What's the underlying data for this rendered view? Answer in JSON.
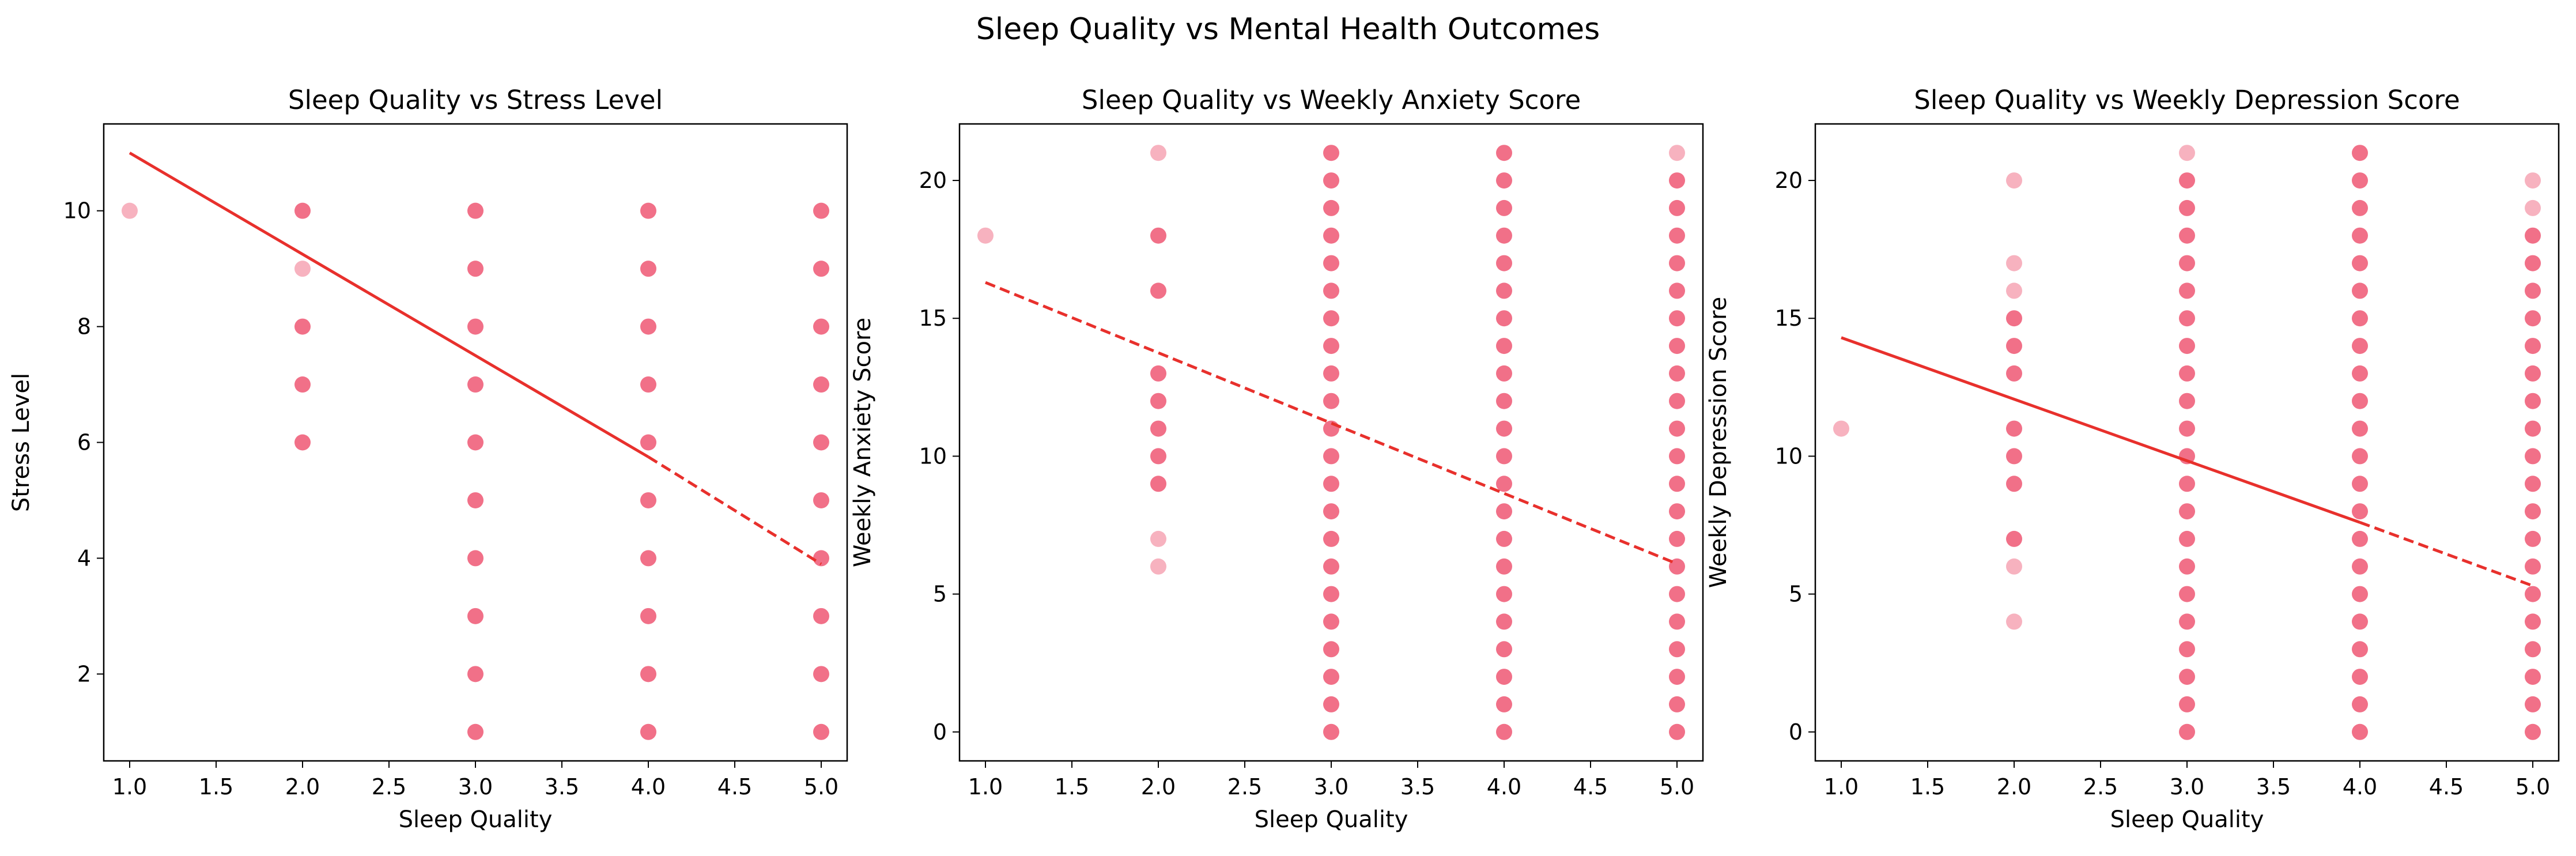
{
  "figure": {
    "suptitle": "Sleep Quality vs Mental Health Outcomes",
    "point_color": "#f0657f",
    "line_color": "#e8302c"
  },
  "chart_data": [
    {
      "type": "scatter",
      "title": "Sleep Quality vs Stress Level",
      "xlabel": "Sleep Quality",
      "ylabel": "Stress Level",
      "xlim": [
        0.85,
        5.15
      ],
      "ylim": [
        0.5,
        11.5
      ],
      "xticks": [
        "1.0",
        "1.5",
        "2.0",
        "2.5",
        "3.0",
        "3.5",
        "4.0",
        "4.5",
        "5.0"
      ],
      "yticks": [
        "2",
        "4",
        "6",
        "8",
        "10"
      ],
      "xtick_values": [
        1.0,
        1.5,
        2.0,
        2.5,
        3.0,
        3.5,
        4.0,
        4.5,
        5.0
      ],
      "ytick_values": [
        2,
        4,
        6,
        8,
        10
      ],
      "points": [
        {
          "x": 1,
          "y": [
            10
          ],
          "light": [
            10
          ]
        },
        {
          "x": 2,
          "y": [
            6,
            7,
            8,
            9,
            10
          ],
          "light": [
            9
          ]
        },
        {
          "x": 3,
          "y": [
            1,
            2,
            3,
            4,
            5,
            6,
            7,
            8,
            9,
            10
          ],
          "light": []
        },
        {
          "x": 4,
          "y": [
            1,
            2,
            3,
            4,
            5,
            6,
            7,
            8,
            9,
            10
          ],
          "light": []
        },
        {
          "x": 5,
          "y": [
            1,
            2,
            3,
            4,
            5,
            6,
            7,
            8,
            9,
            10
          ],
          "light": []
        }
      ],
      "trend": {
        "solid": [
          [
            1,
            11.0
          ],
          [
            4,
            5.75
          ]
        ],
        "dashed": [
          [
            4,
            5.75
          ],
          [
            5,
            3.9
          ]
        ]
      }
    },
    {
      "type": "scatter",
      "title": "Sleep Quality vs Weekly Anxiety Score",
      "xlabel": "Sleep Quality",
      "ylabel": "Weekly Anxiety Score",
      "xlim": [
        0.85,
        5.15
      ],
      "ylim": [
        -1.05,
        22.05
      ],
      "xticks": [
        "1.0",
        "1.5",
        "2.0",
        "2.5",
        "3.0",
        "3.5",
        "4.0",
        "4.5",
        "5.0"
      ],
      "yticks": [
        "0",
        "5",
        "10",
        "15",
        "20"
      ],
      "xtick_values": [
        1.0,
        1.5,
        2.0,
        2.5,
        3.0,
        3.5,
        4.0,
        4.5,
        5.0
      ],
      "ytick_values": [
        0,
        5,
        10,
        15,
        20
      ],
      "points": [
        {
          "x": 1,
          "y": [
            18
          ],
          "light": [
            18
          ]
        },
        {
          "x": 2,
          "y": [
            6,
            7,
            9,
            10,
            11,
            12,
            13,
            16,
            18,
            21
          ],
          "light": [
            6,
            7,
            21
          ]
        },
        {
          "x": 3,
          "y": [
            0,
            1,
            2,
            3,
            4,
            5,
            6,
            7,
            8,
            9,
            10,
            11,
            12,
            13,
            14,
            15,
            16,
            17,
            18,
            19,
            20,
            21
          ],
          "light": []
        },
        {
          "x": 4,
          "y": [
            0,
            1,
            2,
            3,
            4,
            5,
            6,
            7,
            8,
            9,
            10,
            11,
            12,
            13,
            14,
            15,
            16,
            17,
            18,
            19,
            20,
            21
          ],
          "light": []
        },
        {
          "x": 5,
          "y": [
            0,
            1,
            2,
            3,
            4,
            5,
            6,
            7,
            8,
            9,
            10,
            11,
            12,
            13,
            14,
            15,
            16,
            17,
            18,
            19,
            20,
            21
          ],
          "light": [
            21
          ]
        }
      ],
      "trend": {
        "solid": [],
        "dashed": [
          [
            1,
            16.3
          ],
          [
            5,
            6.1
          ]
        ]
      }
    },
    {
      "type": "scatter",
      "title": "Sleep Quality vs Weekly Depression Score",
      "xlabel": "Sleep Quality",
      "ylabel": "Weekly Depression Score",
      "xlim": [
        0.85,
        5.15
      ],
      "ylim": [
        -1.05,
        22.05
      ],
      "xticks": [
        "1.0",
        "1.5",
        "2.0",
        "2.5",
        "3.0",
        "3.5",
        "4.0",
        "4.5",
        "5.0"
      ],
      "yticks": [
        "0",
        "5",
        "10",
        "15",
        "20"
      ],
      "xtick_values": [
        1.0,
        1.5,
        2.0,
        2.5,
        3.0,
        3.5,
        4.0,
        4.5,
        5.0
      ],
      "ytick_values": [
        0,
        5,
        10,
        15,
        20
      ],
      "points": [
        {
          "x": 1,
          "y": [
            11
          ],
          "light": [
            11
          ]
        },
        {
          "x": 2,
          "y": [
            4,
            6,
            7,
            9,
            10,
            11,
            13,
            14,
            15,
            16,
            17,
            20
          ],
          "light": [
            4,
            6,
            16,
            17,
            20
          ]
        },
        {
          "x": 3,
          "y": [
            0,
            1,
            2,
            3,
            4,
            5,
            6,
            7,
            8,
            9,
            10,
            11,
            12,
            13,
            14,
            15,
            16,
            17,
            18,
            19,
            20,
            21
          ],
          "light": [
            21
          ]
        },
        {
          "x": 4,
          "y": [
            0,
            1,
            2,
            3,
            4,
            5,
            6,
            7,
            8,
            9,
            10,
            11,
            12,
            13,
            14,
            15,
            16,
            17,
            18,
            19,
            20,
            21
          ],
          "light": []
        },
        {
          "x": 5,
          "y": [
            0,
            1,
            2,
            3,
            4,
            5,
            6,
            7,
            8,
            9,
            10,
            11,
            12,
            13,
            14,
            15,
            16,
            17,
            18,
            19,
            20
          ],
          "light": [
            19,
            20
          ]
        }
      ],
      "trend": {
        "solid": [
          [
            1,
            14.3
          ],
          [
            4,
            7.6
          ]
        ],
        "dashed": [
          [
            4,
            7.6
          ],
          [
            5,
            5.3
          ]
        ]
      }
    }
  ]
}
